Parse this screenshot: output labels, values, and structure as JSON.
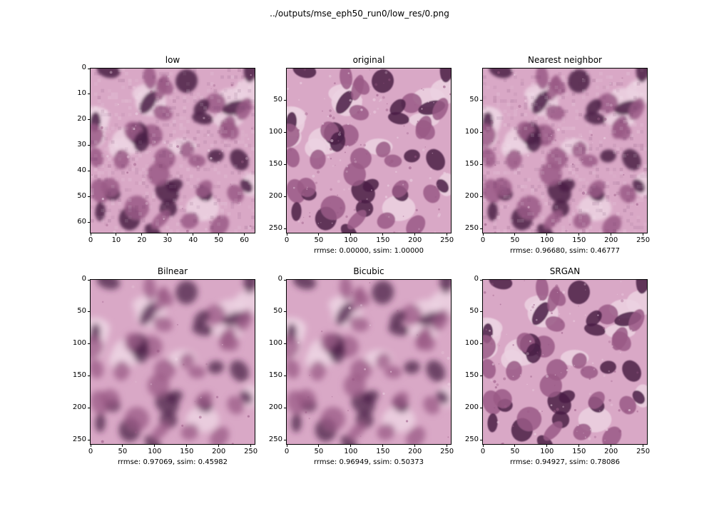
{
  "figure": {
    "suptitle": "../outputs/mse_eph50_run0/low_res/0.png",
    "panels": [
      {
        "title": "low",
        "xlabel": "",
        "xticks": [
          "0",
          "10",
          "20",
          "30",
          "40",
          "50",
          "60"
        ],
        "yticks": [
          "0",
          "10",
          "20",
          "30",
          "40",
          "50",
          "60"
        ],
        "axis_max": 64,
        "rendering": "pixelated-64",
        "noise_level": 0.15
      },
      {
        "title": "original",
        "xlabel": "rrmse: 0.00000, ssim: 1.00000",
        "xticks": [
          "0",
          "50",
          "100",
          "150",
          "200",
          "250"
        ],
        "yticks": [
          "50",
          "100",
          "150",
          "200",
          "250"
        ],
        "axis_max": 256,
        "rendering": "sharp",
        "noise_level": 0.35
      },
      {
        "title": "Nearest neighbor",
        "xlabel": "rrmse: 0.96680, ssim: 0.46777",
        "xticks": [
          "0",
          "50",
          "100",
          "150",
          "200",
          "250"
        ],
        "yticks": [
          "50",
          "100",
          "150",
          "200",
          "250"
        ],
        "axis_max": 256,
        "rendering": "pixelated-64",
        "noise_level": 0.15
      },
      {
        "title": "Bilnear",
        "xlabel": "rrmse: 0.97069, ssim: 0.45982",
        "xticks": [
          "0",
          "50",
          "100",
          "150",
          "200",
          "250"
        ],
        "yticks": [
          "0",
          "50",
          "100",
          "150",
          "200",
          "250"
        ],
        "axis_max": 256,
        "rendering": "smooth",
        "noise_level": 0.05
      },
      {
        "title": "Bicubic",
        "xlabel": "rrmse: 0.96949, ssim: 0.50373",
        "xticks": [
          "0",
          "50",
          "100",
          "150",
          "200",
          "250"
        ],
        "yticks": [
          "0",
          "50",
          "100",
          "150",
          "200",
          "250"
        ],
        "axis_max": 256,
        "rendering": "smooth",
        "noise_level": 0.06
      },
      {
        "title": "SRGAN",
        "xlabel": "rrmse: 0.94927, ssim: 0.78086",
        "xticks": [
          "0",
          "50",
          "100",
          "150",
          "200",
          "250"
        ],
        "yticks": [
          "0",
          "50",
          "100",
          "150",
          "200",
          "250"
        ],
        "axis_max": 256,
        "rendering": "sharp",
        "noise_level": 0.28
      }
    ],
    "colors": {
      "background_tissue": "#d9a8c6",
      "light_tissue": "#ecd2e2",
      "nucleus_mid": "#9a5a86",
      "nucleus_dark": "#4a1f47"
    }
  }
}
